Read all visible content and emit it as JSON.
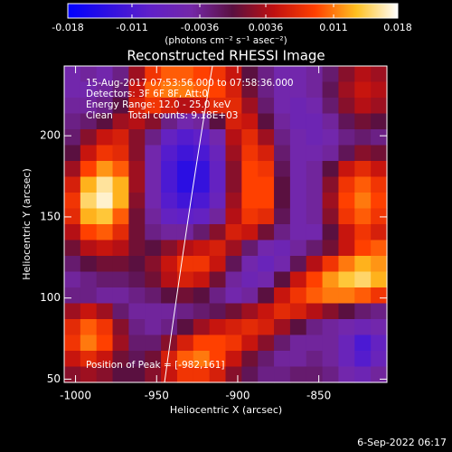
{
  "chart_data": {
    "type": "heatmap",
    "title": "Reconstructed RHESSI Image",
    "x_label": "Heliocentric X (arcsec)",
    "y_label": "Heliocentric Y (arcsec)",
    "colorbar_label": "(photons cm⁻² s⁻¹ asec⁻²)",
    "annotations": [
      "15-Aug-2017 07:53:56.000 to 07:58:36.000",
      "Detectors: 3F 6F 8F, Att:0",
      "Energy Range: 12.0 - 25.0 keV",
      "Clean     Total counts: 9.18E+03"
    ],
    "peak_label": "Position of Peak = [-982,161]",
    "timestamp": "6-Sep-2022 06:17",
    "xlim": [
      -1007,
      -808
    ],
    "ylim": [
      48,
      243
    ],
    "xticks": [
      -1000,
      -950,
      -900,
      -850
    ],
    "yticks": [
      50,
      100,
      150,
      200
    ],
    "zlim": [
      -0.018,
      0.018
    ],
    "zticks": [
      -0.018,
      -0.011,
      -0.0036,
      0.0036,
      0.011,
      0.018
    ],
    "colorscale": [
      "#0000ff",
      "#3010e0",
      "#6020c8",
      "#7428a8",
      "#5a1040",
      "#c01010",
      "#ff4000",
      "#ffc020",
      "#ffffff"
    ],
    "z": [
      [
        -0.005,
        -0.004,
        -0.005,
        -0.003,
        0.003,
        0.008,
        0.01,
        0.01,
        0.009,
        0.008,
        0.005,
        0.0,
        -0.003,
        -0.005,
        -0.005,
        -0.004,
        -0.002,
        0.002,
        0.004,
        0.003
      ],
      [
        -0.005,
        -0.005,
        -0.004,
        -0.002,
        0.005,
        0.01,
        0.011,
        0.011,
        0.01,
        0.009,
        0.006,
        0.001,
        -0.003,
        -0.005,
        -0.005,
        -0.004,
        -0.001,
        0.003,
        0.005,
        0.004
      ],
      [
        -0.004,
        -0.004,
        -0.003,
        0.0,
        0.006,
        0.008,
        0.006,
        0.004,
        0.005,
        0.007,
        0.007,
        0.003,
        -0.002,
        -0.005,
        -0.006,
        -0.005,
        -0.002,
        0.002,
        0.004,
        0.003
      ],
      [
        -0.003,
        -0.002,
        0.0,
        0.003,
        0.004,
        0.002,
        -0.003,
        -0.005,
        -0.004,
        0.0,
        0.006,
        0.005,
        0.0,
        -0.004,
        -0.006,
        -0.006,
        -0.004,
        -0.001,
        0.001,
        0.0
      ],
      [
        -0.002,
        0.002,
        0.005,
        0.006,
        0.002,
        -0.003,
        -0.008,
        -0.01,
        -0.009,
        -0.005,
        0.004,
        0.007,
        0.003,
        -0.003,
        -0.005,
        -0.006,
        -0.005,
        -0.003,
        -0.002,
        -0.003
      ],
      [
        0.0,
        0.005,
        0.008,
        0.007,
        0.002,
        -0.005,
        -0.01,
        -0.012,
        -0.011,
        -0.007,
        0.003,
        0.008,
        0.006,
        -0.002,
        -0.005,
        -0.005,
        -0.004,
        -0.001,
        0.002,
        0.001
      ],
      [
        0.003,
        0.009,
        0.012,
        0.01,
        0.003,
        -0.005,
        -0.011,
        -0.014,
        -0.013,
        -0.008,
        0.002,
        0.009,
        0.008,
        -0.001,
        -0.005,
        -0.004,
        0.0,
        0.005,
        0.007,
        0.005
      ],
      [
        0.006,
        0.013,
        0.016,
        0.013,
        0.003,
        -0.005,
        -0.011,
        -0.014,
        -0.013,
        -0.008,
        0.002,
        0.009,
        0.009,
        0.0,
        -0.005,
        -0.004,
        0.002,
        0.008,
        0.01,
        0.008
      ],
      [
        0.008,
        0.015,
        0.017,
        0.013,
        0.002,
        -0.005,
        -0.01,
        -0.012,
        -0.011,
        -0.007,
        0.003,
        0.009,
        0.009,
        0.0,
        -0.005,
        -0.004,
        0.003,
        0.009,
        0.011,
        0.009
      ],
      [
        0.007,
        0.013,
        0.014,
        0.01,
        0.001,
        -0.004,
        -0.008,
        -0.009,
        -0.008,
        -0.004,
        0.004,
        0.008,
        0.007,
        -0.001,
        -0.005,
        -0.004,
        0.002,
        0.008,
        0.01,
        0.008
      ],
      [
        0.004,
        0.009,
        0.01,
        0.007,
        0.001,
        -0.003,
        -0.004,
        -0.004,
        -0.002,
        0.002,
        0.006,
        0.005,
        0.001,
        -0.003,
        -0.005,
        -0.005,
        0.0,
        0.005,
        0.008,
        0.006
      ],
      [
        0.001,
        0.004,
        0.005,
        0.004,
        0.001,
        0.0,
        0.002,
        0.004,
        0.005,
        0.006,
        0.003,
        -0.002,
        -0.005,
        -0.006,
        -0.004,
        -0.002,
        0.001,
        0.005,
        0.009,
        0.01
      ],
      [
        -0.002,
        0.0,
        0.001,
        0.001,
        0.0,
        0.002,
        0.005,
        0.008,
        0.008,
        0.005,
        -0.001,
        -0.005,
        -0.007,
        -0.005,
        -0.001,
        0.004,
        0.008,
        0.011,
        0.013,
        0.012
      ],
      [
        -0.004,
        -0.003,
        -0.002,
        -0.002,
        -0.001,
        0.001,
        0.004,
        0.006,
        0.005,
        0.001,
        -0.004,
        -0.006,
        -0.005,
        0.0,
        0.005,
        0.009,
        0.012,
        0.014,
        0.015,
        0.013
      ],
      [
        -0.003,
        -0.003,
        -0.004,
        -0.004,
        -0.003,
        -0.002,
        0.0,
        0.001,
        0.0,
        -0.003,
        -0.005,
        -0.004,
        0.0,
        0.005,
        0.008,
        0.01,
        0.011,
        0.011,
        0.01,
        0.008
      ],
      [
        0.003,
        0.005,
        0.003,
        -0.002,
        -0.004,
        -0.004,
        -0.004,
        -0.003,
        -0.002,
        -0.001,
        0.001,
        0.003,
        0.005,
        0.007,
        0.006,
        0.004,
        0.002,
        0.0,
        -0.002,
        -0.003
      ],
      [
        0.007,
        0.01,
        0.008,
        0.002,
        -0.003,
        -0.004,
        -0.003,
        0.0,
        0.003,
        0.005,
        0.006,
        0.007,
        0.006,
        0.003,
        0.0,
        -0.003,
        -0.004,
        -0.005,
        -0.006,
        -0.005
      ],
      [
        0.008,
        0.011,
        0.009,
        0.003,
        -0.002,
        -0.002,
        0.002,
        0.006,
        0.009,
        0.009,
        0.008,
        0.005,
        0.002,
        -0.002,
        -0.004,
        -0.004,
        -0.004,
        -0.007,
        -0.011,
        -0.008
      ],
      [
        0.005,
        0.007,
        0.005,
        0.001,
        -0.001,
        0.001,
        0.006,
        0.01,
        0.011,
        0.009,
        0.005,
        0.001,
        -0.002,
        -0.004,
        -0.004,
        -0.003,
        -0.004,
        -0.007,
        -0.01,
        -0.007
      ],
      [
        0.002,
        0.003,
        0.002,
        0.0,
        0.0,
        0.002,
        0.005,
        0.008,
        0.008,
        0.006,
        0.002,
        -0.001,
        -0.003,
        -0.003,
        -0.002,
        -0.002,
        -0.003,
        -0.005,
        -0.006,
        -0.004
      ]
    ]
  }
}
